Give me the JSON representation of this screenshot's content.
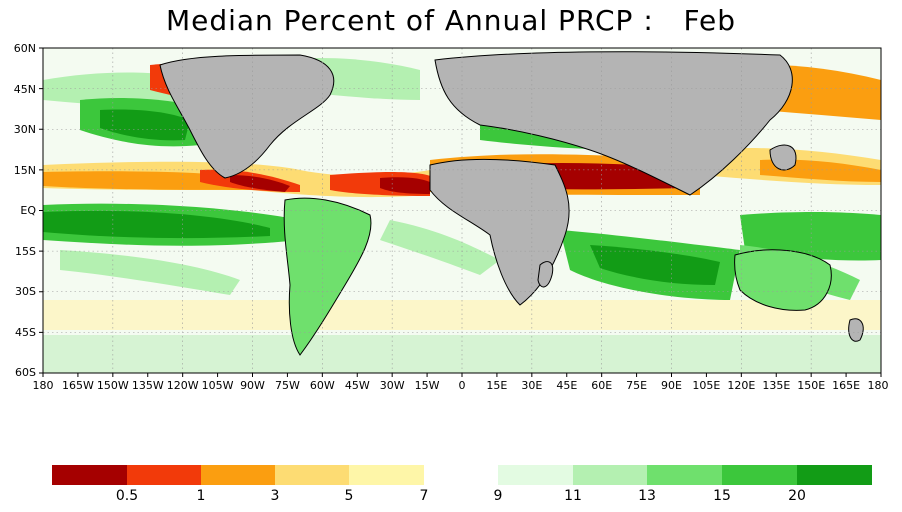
{
  "title": "Median Percent of Annual PRCP :   Feb",
  "y_axis_labels": [
    "60N",
    "45N",
    "30N",
    "15N",
    "EQ",
    "15S",
    "30S",
    "45S",
    "60S"
  ],
  "x_axis_labels": [
    "180",
    "165W",
    "150W",
    "135W",
    "120W",
    "105W",
    "90W",
    "75W",
    "60W",
    "45W",
    "30W",
    "15W",
    "0",
    "15E",
    "30E",
    "45E",
    "60E",
    "75E",
    "90E",
    "105E",
    "120E",
    "135E",
    "150E",
    "165E",
    "180"
  ],
  "colorbar": {
    "colors": [
      "#a50000",
      "#f23a0a",
      "#fb9e10",
      "#fddc73",
      "#fef6a8",
      "#ffffff",
      "#e3fbe2",
      "#b4f0b1",
      "#6fe06d",
      "#3cc73c",
      "#129c16"
    ],
    "labels": [
      "0.5",
      "1",
      "3",
      "5",
      "7",
      "9",
      "11",
      "13",
      "15",
      "20"
    ]
  },
  "colors": {
    "ocean_default": "#ffffff",
    "land_gray": "#b4b4b4",
    "coast": "#000000",
    "grid": "#9a9a9a"
  }
}
